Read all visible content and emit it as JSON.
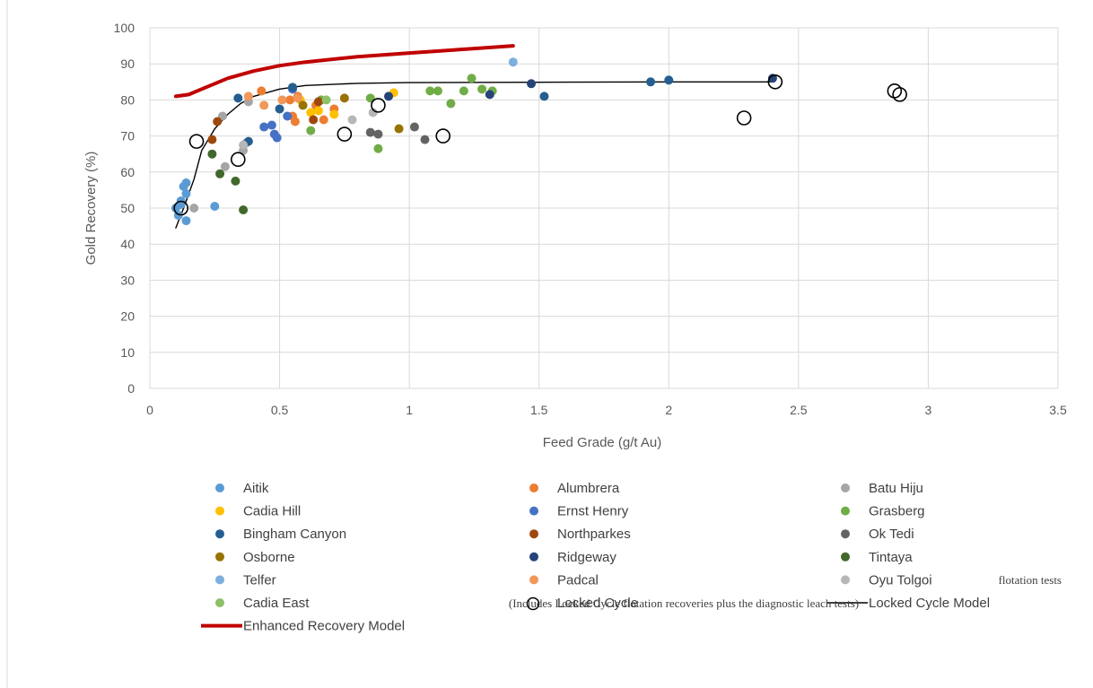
{
  "chart_data": {
    "type": "scatter",
    "xlabel": "Feed Grade (g/t Au)",
    "ylabel": "Gold Recovery (%)",
    "xlim": [
      0,
      3.5
    ],
    "ylim": [
      0,
      100
    ],
    "xticks": [
      0,
      0.5,
      1,
      1.5,
      2,
      2.5,
      3,
      3.5
    ],
    "xtick_labels": [
      "0",
      "0.5",
      "1",
      "1.5",
      "2",
      "2.5",
      "3",
      "3.5"
    ],
    "yticks": [
      0,
      10,
      20,
      30,
      40,
      50,
      60,
      70,
      80,
      90,
      100
    ],
    "ytick_labels": [
      "0",
      "10",
      "20",
      "30",
      "40",
      "50",
      "60",
      "70",
      "80",
      "90",
      "100"
    ],
    "grid": true,
    "legend_position": "bottom",
    "annotations": [
      "flotation tests",
      "(Includes Locked Cycle flotation recoveries plus the diagnostic leach tests)"
    ],
    "series": [
      {
        "name": "Aitik",
        "marker": "dot",
        "color": "#5B9BD5",
        "points": [
          [
            0.1,
            50
          ],
          [
            0.11,
            48
          ],
          [
            0.12,
            52
          ],
          [
            0.13,
            56
          ],
          [
            0.14,
            57
          ],
          [
            0.14,
            54
          ],
          [
            0.14,
            46.5
          ],
          [
            0.12,
            51
          ],
          [
            0.25,
            50.5
          ]
        ]
      },
      {
        "name": "Alumbrera",
        "marker": "dot",
        "color": "#ED7D31",
        "points": [
          [
            0.43,
            82.5
          ],
          [
            0.54,
            80
          ],
          [
            0.55,
            75.5
          ],
          [
            0.56,
            74
          ],
          [
            0.64,
            78.5
          ],
          [
            0.67,
            74.5
          ],
          [
            0.71,
            77.5
          ],
          [
            0.57,
            81
          ]
        ]
      },
      {
        "name": "Batu Hiju",
        "marker": "dot",
        "color": "#A5A5A5",
        "points": [
          [
            0.28,
            75.5
          ],
          [
            0.29,
            61.5
          ],
          [
            0.36,
            66
          ],
          [
            0.37,
            68
          ],
          [
            0.38,
            79.5
          ],
          [
            0.17,
            50
          ]
        ]
      },
      {
        "name": "Cadia Hill",
        "marker": "dot",
        "color": "#FFC000",
        "points": [
          [
            0.58,
            80
          ],
          [
            0.62,
            76.5
          ],
          [
            0.65,
            77
          ],
          [
            0.71,
            76
          ],
          [
            0.94,
            82
          ]
        ]
      },
      {
        "name": "Ernst Henry",
        "marker": "dot",
        "color": "#4472C4",
        "points": [
          [
            0.44,
            72.5
          ],
          [
            0.47,
            73
          ],
          [
            0.48,
            70.5
          ],
          [
            0.49,
            69.5
          ],
          [
            0.53,
            75.5
          ],
          [
            0.55,
            83
          ]
        ]
      },
      {
        "name": "Grasberg",
        "marker": "dot",
        "color": "#70AD47",
        "points": [
          [
            0.62,
            71.5
          ],
          [
            0.66,
            80
          ],
          [
            0.85,
            80.5
          ],
          [
            0.88,
            66.5
          ],
          [
            1.08,
            82.5
          ],
          [
            1.11,
            82.5
          ],
          [
            1.16,
            79
          ],
          [
            1.21,
            82.5
          ],
          [
            1.24,
            86
          ],
          [
            1.28,
            83
          ],
          [
            1.32,
            82.5
          ]
        ]
      },
      {
        "name": "Bingham Canyon",
        "marker": "dot",
        "color": "#255E91",
        "points": [
          [
            0.34,
            80.5
          ],
          [
            0.38,
            68.5
          ],
          [
            0.5,
            77.5
          ],
          [
            0.55,
            83.5
          ],
          [
            1.52,
            81
          ],
          [
            1.93,
            85
          ],
          [
            2.0,
            85.5
          ]
        ]
      },
      {
        "name": "Northparkes",
        "marker": "dot",
        "color": "#9E480E",
        "points": [
          [
            0.24,
            69
          ],
          [
            0.26,
            74
          ],
          [
            0.63,
            74.5
          ],
          [
            0.65,
            79.5
          ]
        ]
      },
      {
        "name": "Ok Tedi",
        "marker": "dot",
        "color": "#636363",
        "points": [
          [
            0.85,
            71
          ],
          [
            0.88,
            70.5
          ],
          [
            1.02,
            72.5
          ],
          [
            1.06,
            69
          ]
        ]
      },
      {
        "name": "Osborne",
        "marker": "dot",
        "color": "#997300",
        "points": [
          [
            0.59,
            78.5
          ],
          [
            0.75,
            80.5
          ],
          [
            0.96,
            72
          ]
        ]
      },
      {
        "name": "Ridgeway",
        "marker": "dot",
        "color": "#264478",
        "points": [
          [
            0.92,
            81
          ],
          [
            1.31,
            81.5
          ],
          [
            1.47,
            84.5
          ],
          [
            2.4,
            86
          ]
        ]
      },
      {
        "name": "Tintaya",
        "marker": "dot",
        "color": "#43682B",
        "points": [
          [
            0.24,
            65
          ],
          [
            0.27,
            59.5
          ],
          [
            0.33,
            57.5
          ],
          [
            0.36,
            49.5
          ]
        ]
      },
      {
        "name": "Telfer",
        "marker": "dot",
        "color": "#7CAFDD",
        "points": [
          [
            1.4,
            90.5
          ]
        ]
      },
      {
        "name": "Padcal",
        "marker": "dot",
        "color": "#F1975A",
        "points": [
          [
            0.38,
            81
          ],
          [
            0.44,
            78.5
          ],
          [
            0.51,
            80
          ],
          [
            0.57,
            80.5
          ]
        ]
      },
      {
        "name": "Oyu Tolgoi",
        "marker": "dot",
        "color": "#B7B7B7",
        "points": [
          [
            0.36,
            67.5
          ],
          [
            0.78,
            74.5
          ],
          [
            0.86,
            76.5
          ]
        ]
      },
      {
        "name": "Cadia East",
        "marker": "dot",
        "color": "#8CC168",
        "points": [
          [
            0.68,
            80
          ]
        ]
      },
      {
        "name": "Locked Cycle",
        "marker": "open-circle",
        "color": "#000000",
        "points": [
          [
            0.12,
            50
          ],
          [
            0.18,
            68.5
          ],
          [
            0.34,
            63.5
          ],
          [
            0.75,
            70.5
          ],
          [
            0.88,
            78.5
          ],
          [
            1.13,
            70
          ],
          [
            2.29,
            75
          ],
          [
            2.41,
            85
          ],
          [
            2.87,
            82.5
          ],
          [
            2.89,
            81.5
          ]
        ]
      },
      {
        "name": "Locked Cycle Model",
        "marker": "line",
        "color": "#000000",
        "points": [
          [
            0.1,
            44.5
          ],
          [
            0.13,
            50
          ],
          [
            0.17,
            58
          ],
          [
            0.2,
            66
          ],
          [
            0.25,
            72
          ],
          [
            0.3,
            76
          ],
          [
            0.35,
            79
          ],
          [
            0.4,
            81
          ],
          [
            0.5,
            83
          ],
          [
            0.6,
            84
          ],
          [
            0.8,
            84.6
          ],
          [
            1.0,
            84.8
          ],
          [
            1.5,
            84.9
          ],
          [
            2.0,
            85
          ],
          [
            2.4,
            85
          ]
        ]
      },
      {
        "name": "Enhanced Recovery Model",
        "marker": "thick-line",
        "color": "#C00000",
        "points": [
          [
            0.1,
            81
          ],
          [
            0.15,
            81.5
          ],
          [
            0.2,
            83
          ],
          [
            0.25,
            84.5
          ],
          [
            0.3,
            86
          ],
          [
            0.4,
            88
          ],
          [
            0.5,
            89.5
          ],
          [
            0.6,
            90.5
          ],
          [
            0.8,
            92
          ],
          [
            1.0,
            93
          ],
          [
            1.2,
            94
          ],
          [
            1.4,
            95
          ]
        ]
      }
    ]
  }
}
